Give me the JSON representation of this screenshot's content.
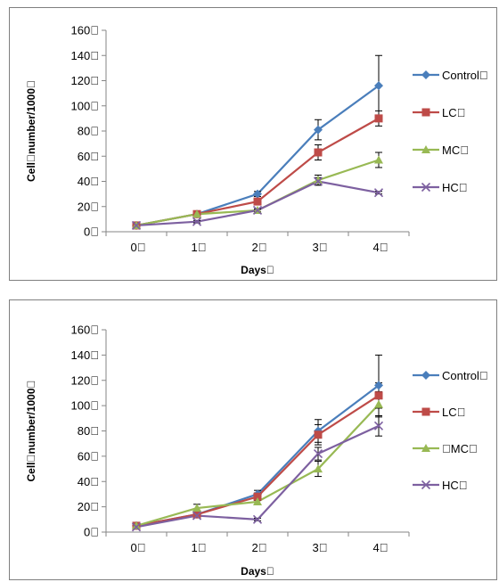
{
  "chart_data": [
    {
      "type": "line",
      "title": "",
      "xlabel": "Days\u0000",
      "ylabel": "Cell\u0000number/1000\u0000",
      "categories": [
        "0\u0000",
        "1\u0000",
        "2\u0000",
        "3\u0000",
        "4\u0000"
      ],
      "yticks": [
        "0\u0000",
        "20\u0000",
        "40\u0000",
        "60\u0000",
        "80\u0000",
        "100\u0000",
        "120\u0000",
        "140\u0000",
        "160\u0000"
      ],
      "ylim": [
        0,
        160
      ],
      "grid": false,
      "legend": "right",
      "series": [
        {
          "name": "Control\u0000",
          "color": "#4a7ebb",
          "marker": "diamond",
          "values": [
            5,
            14,
            30,
            81,
            116
          ],
          "err": [
            0,
            2,
            2,
            8,
            24
          ]
        },
        {
          "name": "LC\u0000",
          "color": "#be4b48",
          "marker": "square",
          "values": [
            5,
            14,
            24,
            63,
            90
          ],
          "err": [
            0,
            1,
            2,
            6,
            6
          ]
        },
        {
          "name": "MC\u0000",
          "color": "#98b954",
          "marker": "triangle",
          "values": [
            5,
            14,
            17,
            41,
            57
          ],
          "err": [
            0,
            1,
            1,
            4,
            6
          ]
        },
        {
          "name": "HC\u0000",
          "color": "#7d60a0",
          "marker": "x",
          "values": [
            5,
            8,
            17,
            40,
            31
          ],
          "err": [
            0,
            1,
            1,
            3,
            1
          ]
        }
      ]
    },
    {
      "type": "line",
      "title": "",
      "xlabel": "Days\u0000",
      "ylabel": "Cell\u0000number/1000\u0000",
      "categories": [
        "0\u0000",
        "1\u0000",
        "2\u0000",
        "3\u0000",
        "4\u0000"
      ],
      "yticks": [
        "0\u0000",
        "20\u0000",
        "40\u0000",
        "60\u0000",
        "80\u0000",
        "100\u0000",
        "120\u0000",
        "140\u0000",
        "160\u0000"
      ],
      "ylim": [
        0,
        160
      ],
      "grid": false,
      "legend": "right",
      "series": [
        {
          "name": "Control\u0000",
          "color": "#4a7ebb",
          "marker": "diamond",
          "values": [
            5,
            14,
            30,
            80,
            116
          ],
          "err": [
            0,
            2,
            3,
            9,
            24
          ]
        },
        {
          "name": "LC\u0000",
          "color": "#be4b48",
          "marker": "square",
          "values": [
            5,
            14,
            28,
            77,
            108
          ],
          "err": [
            0,
            2,
            3,
            8,
            10
          ]
        },
        {
          "name": "\u0000MC\u0000",
          "color": "#98b954",
          "marker": "triangle",
          "values": [
            5,
            19,
            24,
            50,
            101
          ],
          "err": [
            0,
            3,
            2,
            6,
            10
          ]
        },
        {
          "name": "HC\u0000",
          "color": "#7d60a0",
          "marker": "x",
          "values": [
            4,
            13,
            10,
            62,
            84
          ],
          "err": [
            0,
            1,
            1,
            5,
            8
          ]
        }
      ]
    }
  ]
}
